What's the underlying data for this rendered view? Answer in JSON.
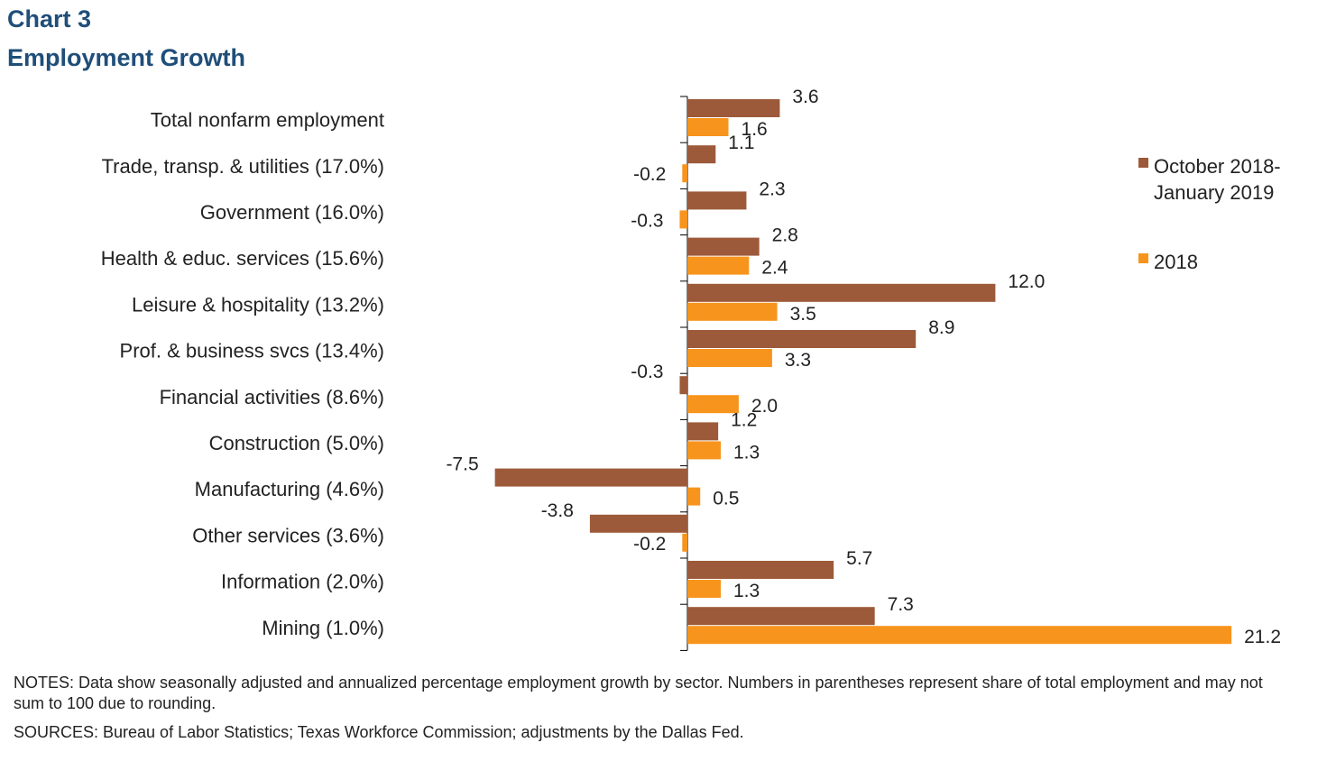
{
  "header": {
    "chart_number": "Chart 3",
    "title": "Employment Growth"
  },
  "chart_data": {
    "type": "bar",
    "orientation": "horizontal",
    "title": "Employment Growth",
    "categories": [
      "Total nonfarm employment",
      "Trade, transp. & utilities (17.0%)",
      "Government (16.0%)",
      "Health & educ. services (15.6%)",
      "Leisure & hospitality (13.2%)",
      "Prof. & business svcs (13.4%)",
      "Financial activities (8.6%)",
      "Construction (5.0%)",
      "Manufacturing (4.6%)",
      "Other services (3.6%)",
      "Information (2.0%)",
      "Mining (1.0%)"
    ],
    "series": [
      {
        "name": "October 2018-January 2019",
        "legend_lines": [
          "October 2018-",
          "January 2019"
        ],
        "color": "#9c5a3a",
        "values": [
          3.6,
          1.1,
          2.3,
          2.8,
          12.0,
          8.9,
          -0.3,
          1.2,
          -7.5,
          -3.8,
          5.7,
          7.3
        ],
        "labels": [
          "3.6",
          "1.1",
          "2.3",
          "2.8",
          "12.0",
          "8.9",
          "-0.3",
          "1.2",
          "-7.5",
          "-3.8",
          "5.7",
          "7.3"
        ]
      },
      {
        "name": "2018",
        "legend_lines": [
          "2018"
        ],
        "color": "#f7941d",
        "values": [
          1.6,
          -0.2,
          -0.3,
          2.4,
          3.5,
          3.3,
          2.0,
          1.3,
          0.5,
          -0.2,
          1.3,
          21.2
        ],
        "labels": [
          "1.6",
          "-0.2",
          "-0.3",
          "2.4",
          "3.5",
          "3.3",
          "2.0",
          "1.3",
          "0.5",
          "-0.2",
          "1.3",
          "21.2"
        ]
      }
    ],
    "grid": false,
    "legend_position": "right"
  },
  "footer": {
    "notes": "NOTES: Data show seasonally adjusted and annualized percentage employment growth by sector. Numbers in parentheses represent share of total employment and may not sum to 100 due to rounding.",
    "sources": "SOURCES: Bureau of Labor Statistics; Texas Workforce Commission; adjustments by the Dallas Fed."
  }
}
